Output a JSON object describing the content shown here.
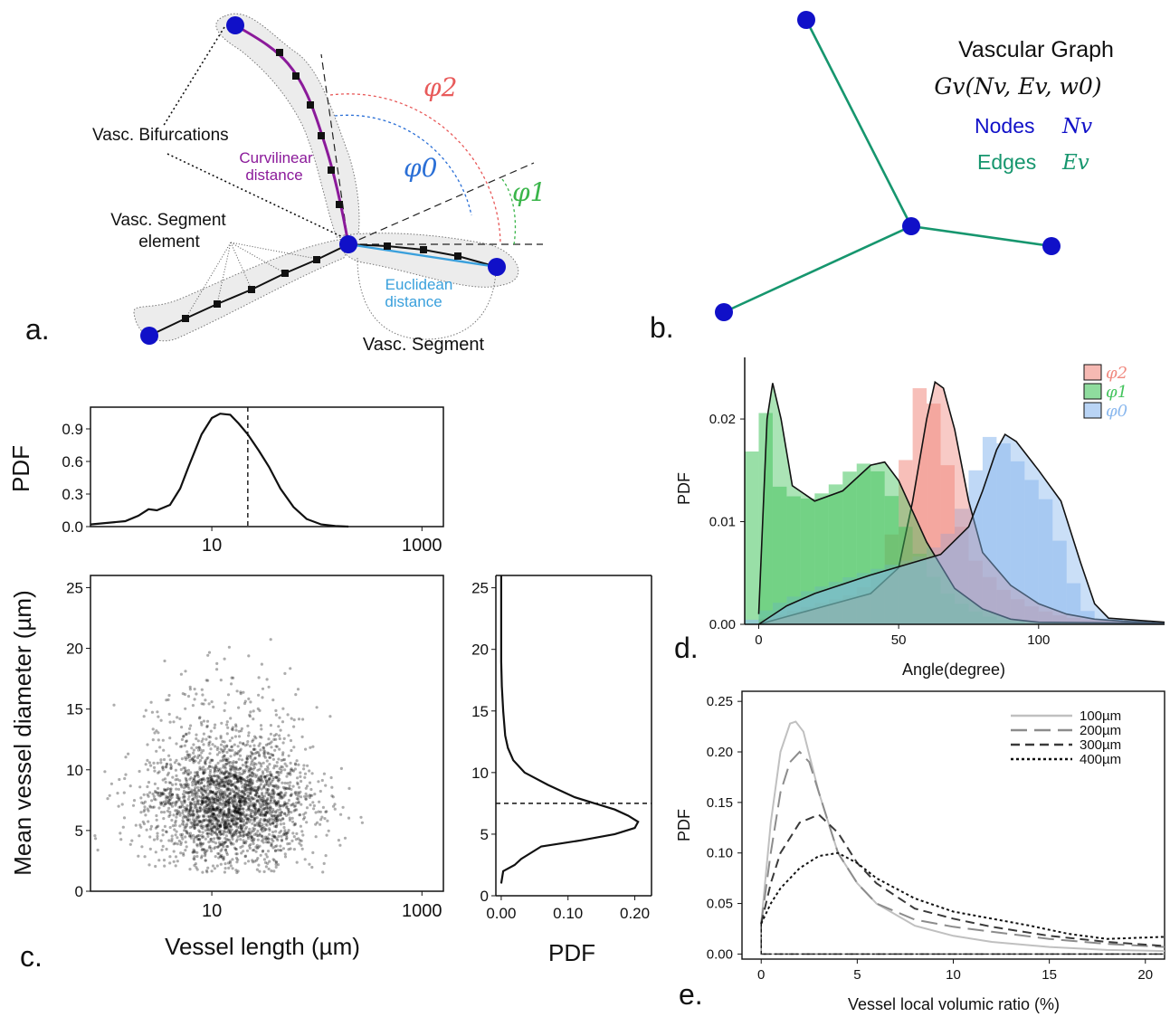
{
  "panel_a": {
    "label": "a.",
    "bifurcations": "Vasc. Bifurcations",
    "curvilinear": [
      "Curvilinear",
      "distance"
    ],
    "segment_element": [
      "Vasc. Segment",
      "element"
    ],
    "euclidean": [
      "Euclidean",
      "distance"
    ],
    "segment": "Vasc. Segment",
    "phi2": "φ2",
    "phi0": "φ0",
    "phi1": "φ1",
    "colors": {
      "node": "#1010c8",
      "curvilinear": "#8b1a9a",
      "euclidean": "#3aa0dc",
      "phi2": "#e85a5a",
      "phi0": "#2a6fd6",
      "phi1": "#3ab54a"
    }
  },
  "panel_b": {
    "label": "b.",
    "title": "Vascular Graph",
    "formula": "Gv(Nv, Ev, w0)",
    "nodes_label": "Nodes",
    "nodes_symbol": "Nv",
    "edges_label": "Edges",
    "edges_symbol": "Ev",
    "colors": {
      "node": "#1010c8",
      "edge": "#16966e"
    }
  },
  "panel_c": {
    "label": "c."
  },
  "panel_d": {
    "label": "d."
  },
  "panel_e": {
    "label": "e."
  },
  "chart_data": [
    {
      "id": "c_top",
      "type": "line",
      "ylabel": "PDF",
      "x_scale": "log",
      "x_ticks": [
        "10",
        "1000"
      ],
      "y_ticks": [
        "0.0",
        "0.3",
        "0.6",
        "0.9"
      ],
      "ylim": [
        0,
        1.1
      ],
      "median_line_x": 22,
      "x": [
        0.7,
        1.5,
        2,
        2.5,
        3,
        4,
        5,
        6,
        8,
        10,
        12,
        15,
        18,
        22,
        28,
        35,
        45,
        60,
        80,
        110,
        150,
        200
      ],
      "y": [
        0.02,
        0.05,
        0.1,
        0.16,
        0.15,
        0.2,
        0.35,
        0.55,
        0.85,
        1.0,
        1.04,
        1.03,
        0.95,
        0.85,
        0.7,
        0.55,
        0.35,
        0.18,
        0.07,
        0.02,
        0.005,
        0.0
      ]
    },
    {
      "id": "c_scatter",
      "type": "scatter",
      "xlabel": "Vessel length (µm)",
      "ylabel": "Mean vessel diameter (µm)",
      "x_scale": "log",
      "x_ticks": [
        "10",
        "1000"
      ],
      "y_ticks": [
        "0",
        "5",
        "10",
        "15",
        "20",
        "25"
      ],
      "ylim": [
        0,
        26
      ],
      "cluster_center": {
        "x": 15,
        "y": 7
      }
    },
    {
      "id": "c_right",
      "type": "line",
      "xlabel": "PDF",
      "x_ticks": [
        "0.00",
        "0.10",
        "0.20"
      ],
      "y_ticks": [
        "0",
        "5",
        "10",
        "15",
        "20",
        "25"
      ],
      "ylim": [
        0,
        26
      ],
      "median_line_y": 7.5,
      "diameter": [
        1,
        2,
        2.5,
        3,
        4,
        4.5,
        5,
        5.5,
        6,
        6.5,
        7,
        7.5,
        8,
        9,
        10,
        11,
        12,
        13,
        15,
        17,
        19,
        22,
        26
      ],
      "pdf": [
        0,
        0.003,
        0.02,
        0.03,
        0.06,
        0.12,
        0.17,
        0.2,
        0.205,
        0.19,
        0.17,
        0.14,
        0.11,
        0.07,
        0.035,
        0.018,
        0.01,
        0.006,
        0.003,
        0.001,
        0.0,
        0.0,
        0.0
      ]
    },
    {
      "id": "d",
      "type": "area",
      "xlabel": "Angle(degree)",
      "ylabel": "PDF",
      "x_ticks": [
        "0",
        "50",
        "100"
      ],
      "y_ticks": [
        "0.00",
        "0.01",
        "0.02"
      ],
      "xlim": [
        -5,
        145
      ],
      "ylim": [
        0,
        0.026
      ],
      "legend_position": "top-right",
      "series": [
        {
          "name": "φ2",
          "color": "#f08a80",
          "x": [
            0,
            20,
            40,
            50,
            55,
            60,
            63,
            66,
            70,
            75,
            80,
            90,
            100,
            110,
            120,
            130,
            145
          ],
          "y": [
            0,
            0.0015,
            0.003,
            0.0055,
            0.012,
            0.02,
            0.0236,
            0.023,
            0.019,
            0.012,
            0.007,
            0.0038,
            0.002,
            0.001,
            0.0005,
            0.0003,
            0.0001
          ]
        },
        {
          "name": "φ1",
          "color": "#45c45e",
          "x": [
            0,
            3,
            5,
            8,
            12,
            20,
            30,
            40,
            45,
            50,
            60,
            70,
            80,
            90,
            100,
            145
          ],
          "y": [
            0.001,
            0.02,
            0.0235,
            0.02,
            0.0135,
            0.012,
            0.013,
            0.0155,
            0.0158,
            0.014,
            0.008,
            0.0035,
            0.0015,
            0.0005,
            0.0002,
            0.0001
          ]
        },
        {
          "name": "φ0",
          "color": "#8ab8ee",
          "x": [
            0,
            10,
            20,
            40,
            55,
            65,
            75,
            80,
            85,
            88,
            92,
            100,
            108,
            115,
            120,
            125,
            145
          ],
          "y": [
            0,
            0.0018,
            0.003,
            0.0048,
            0.006,
            0.0068,
            0.0095,
            0.013,
            0.017,
            0.0185,
            0.0178,
            0.015,
            0.012,
            0.006,
            0.002,
            0.0006,
            0.0002
          ]
        }
      ]
    },
    {
      "id": "e",
      "type": "line",
      "xlabel": "Vessel local volumic ratio (%)",
      "ylabel": "PDF",
      "x_ticks": [
        "0",
        "5",
        "10",
        "15",
        "20"
      ],
      "y_ticks": [
        "0.00",
        "0.05",
        "0.10",
        "0.15",
        "0.20",
        "0.25"
      ],
      "xlim": [
        -1,
        21
      ],
      "ylim": [
        0,
        0.26
      ],
      "legend_position": "top-right",
      "series": [
        {
          "name": "100µm",
          "color": "#c0c0c0",
          "dash": "solid",
          "x": [
            0,
            0.5,
            1,
            1.5,
            1.8,
            2.2,
            3,
            4,
            5,
            6,
            8,
            10,
            12,
            15,
            18,
            21
          ],
          "y": [
            0.03,
            0.13,
            0.2,
            0.228,
            0.23,
            0.22,
            0.16,
            0.1,
            0.07,
            0.05,
            0.028,
            0.018,
            0.012,
            0.007,
            0.004,
            0.003
          ]
        },
        {
          "name": "200µm",
          "color": "#8c8c8c",
          "dash": "longdash",
          "x": [
            0,
            0.5,
            1,
            1.5,
            2,
            2.5,
            3,
            4,
            5,
            6,
            8,
            10,
            12,
            15,
            18,
            21
          ],
          "y": [
            0.03,
            0.1,
            0.16,
            0.19,
            0.2,
            0.19,
            0.16,
            0.1,
            0.07,
            0.05,
            0.034,
            0.027,
            0.022,
            0.015,
            0.01,
            0.007
          ]
        },
        {
          "name": "300µm",
          "color": "#3a3a3a",
          "dash": "dash",
          "x": [
            0,
            0.5,
            1,
            2,
            3,
            4,
            5,
            6,
            8,
            10,
            12,
            15,
            18,
            21
          ],
          "y": [
            0.03,
            0.07,
            0.1,
            0.13,
            0.138,
            0.12,
            0.09,
            0.07,
            0.045,
            0.035,
            0.027,
            0.018,
            0.012,
            0.008
          ]
        },
        {
          "name": "400µm",
          "color": "#111111",
          "dash": "dot",
          "x": [
            0,
            0.5,
            1,
            2,
            3,
            4,
            5,
            6,
            8,
            10,
            12,
            14,
            16,
            18,
            21
          ],
          "y": [
            0.03,
            0.05,
            0.065,
            0.085,
            0.097,
            0.1,
            0.09,
            0.075,
            0.055,
            0.042,
            0.035,
            0.028,
            0.02,
            0.015,
            0.017
          ]
        }
      ]
    }
  ]
}
